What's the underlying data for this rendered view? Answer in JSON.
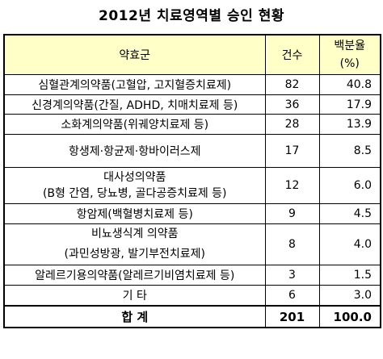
{
  "title": "2012년 치료영역별 승인 현황",
  "headers": {
    "name": "약효군",
    "count": "건수",
    "percent_line1": "백분율",
    "percent_line2": "(%)"
  },
  "rows": [
    {
      "name": "심혈관계의약품(고혈압, 고지혈증치료제)",
      "count": "82",
      "percent": "40.8"
    },
    {
      "name": "신경계의약품(간질, ADHD, 치매치료제 등)",
      "count": "36",
      "percent": "17.9"
    },
    {
      "name": "소화계의약품(위궤양치료제 등)",
      "count": "28",
      "percent": "13.9"
    },
    {
      "name": "항생제·항균제·항바이러스제",
      "count": "17",
      "percent": "8.5"
    },
    {
      "name_line1": "대사성의약품",
      "name_line2": "(B형 간염, 당뇨병, 골다공증치료제 등)",
      "count": "12",
      "percent": "6.0"
    },
    {
      "name": "항암제(백혈병치료제 등)",
      "count": "9",
      "percent": "4.5"
    },
    {
      "name_line1": "비뇨생식계 의약품",
      "name_line2": "(과민성방광, 발기부전치료제)",
      "count": "8",
      "percent": "4.0"
    },
    {
      "name": "알레르기용의약품(알레르기비염치료제 등)",
      "count": "3",
      "percent": "1.5"
    },
    {
      "name": "기 타",
      "count": "6",
      "percent": "3.0"
    }
  ],
  "total": {
    "name": "합 계",
    "count": "201",
    "percent": "100.0"
  }
}
